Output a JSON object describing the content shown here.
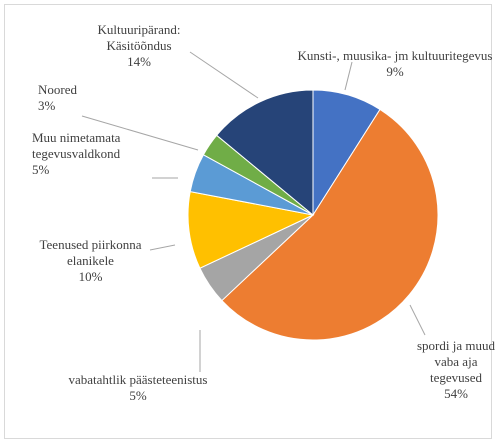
{
  "chart_data": {
    "type": "pie",
    "categories": [
      "Kunsti-, muusika- jm kultuuritegevus",
      "spordi ja muud vaba aja tegevused",
      "vabatahtlik päästeteenistus",
      "Teenused piirkonna elanikele",
      "Muu nimetamata tegevusvaldkond",
      "Noored",
      "Kultuuripärand: Käsitöõndus"
    ],
    "values": [
      9,
      54,
      5,
      10,
      5,
      3,
      14
    ],
    "value_labels": [
      "9%",
      "54%",
      "5%",
      "10%",
      "5%",
      "3%",
      "14%"
    ],
    "colors": [
      "#4472c4",
      "#ed7d31",
      "#a5a5a5",
      "#ffc000",
      "#5b9bd5",
      "#70ad47",
      "#264478"
    ]
  }
}
